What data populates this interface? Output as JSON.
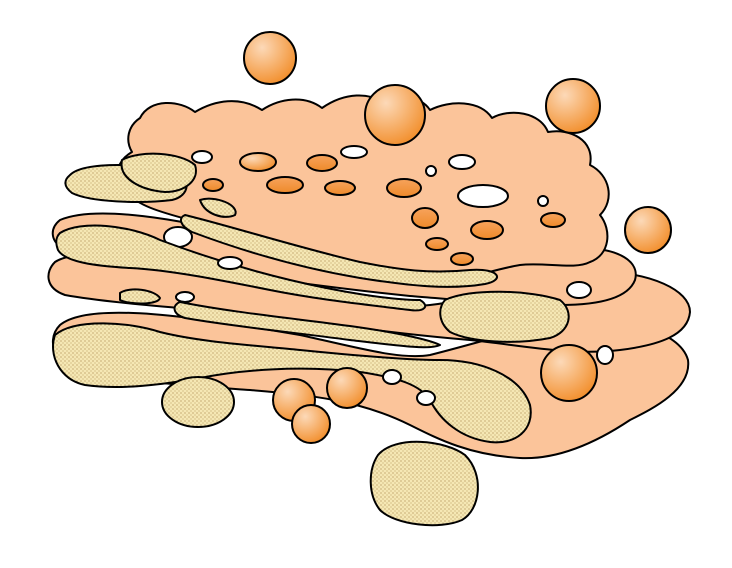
{
  "illustration": {
    "subject": "golgi-apparatus",
    "colors": {
      "outline": "#000000",
      "membrane": "#fbc49a",
      "vesicle_light": "#fcd9b8",
      "vesicle_dark": "#f28e2b",
      "lumen": "#f5e7b4",
      "lumen_dots": "#a8874a",
      "cavity": "#ffffff",
      "background": "#ffffff"
    }
  }
}
